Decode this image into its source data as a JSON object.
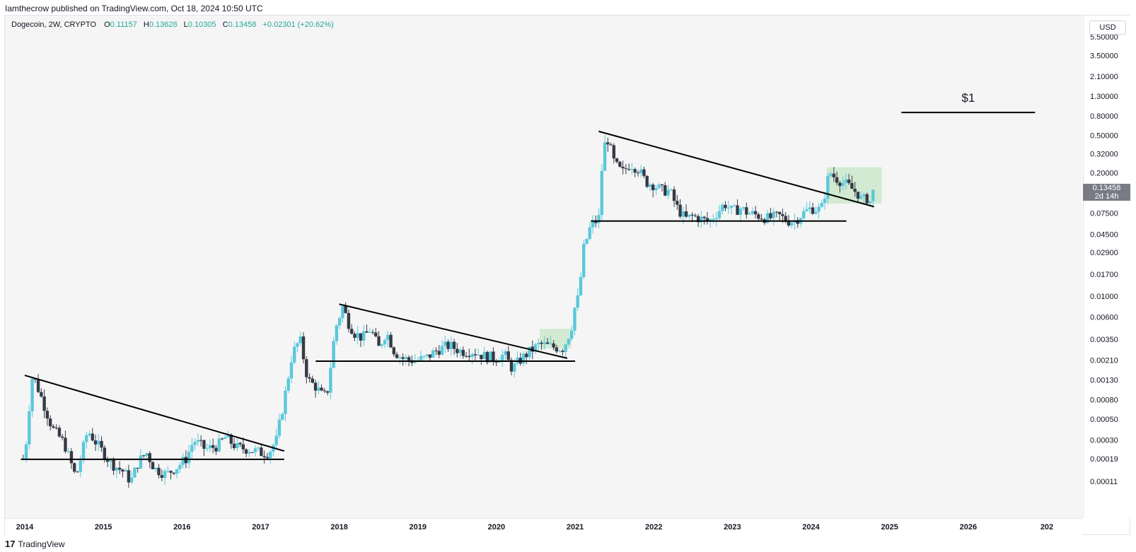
{
  "header": {
    "published": "Iamthecrow published on TradingView.com, Oct 18, 2024 10:50 UTC"
  },
  "legend": {
    "symbol": "Dogecoin, 2W, CRYPTO",
    "o_label": "O",
    "o_value": "0.11157",
    "h_label": "H",
    "h_value": "0.13628",
    "l_label": "L",
    "l_value": "0.10305",
    "c_label": "C",
    "c_value": "0.13458",
    "change": "+0.02301 (+20.62%)"
  },
  "currency_button": "USD",
  "price_badge": {
    "price": "0.13458",
    "countdown": "2d 14h"
  },
  "annotation_text": "$1",
  "footer": {
    "brand": "TradingView",
    "logo": "17"
  },
  "colors": {
    "up": "#5ac8dc",
    "down": "#363a45",
    "accent_green": "#26a69a",
    "box_fill": "#c5e6c5"
  },
  "chart_data": {
    "type": "candlestick",
    "scale": "log",
    "symbol": "Dogecoin",
    "interval": "2W",
    "y_ticks": [
      "5.50000",
      "3.50000",
      "2.10000",
      "1.30000",
      "0.80000",
      "0.50000",
      "0.32000",
      "0.20000",
      "0.13458",
      "0.07500",
      "0.04500",
      "0.02900",
      "0.01700",
      "0.01000",
      "0.00600",
      "0.00350",
      "0.00210",
      "0.00130",
      "0.00080",
      "0.00050",
      "0.00030",
      "0.00019",
      "0.00011"
    ],
    "x_ticks": [
      "2014",
      "2015",
      "2016",
      "2017",
      "2018",
      "2019",
      "2020",
      "2021",
      "2022",
      "2023",
      "2024",
      "2025",
      "2026",
      "202"
    ],
    "x_range": [
      2013.9,
      2027.1
    ],
    "y_range": [
      8e-05,
      6.5
    ],
    "anchors": [
      [
        2014.0,
        0.00019
      ],
      [
        2014.05,
        0.0006
      ],
      [
        2014.1,
        0.0015
      ],
      [
        2014.2,
        0.0009
      ],
      [
        2014.35,
        0.0004
      ],
      [
        2014.5,
        0.00028
      ],
      [
        2014.6,
        0.00016
      ],
      [
        2014.65,
        0.00012
      ],
      [
        2014.8,
        0.00038
      ],
      [
        2014.95,
        0.00025
      ],
      [
        2015.1,
        0.00017
      ],
      [
        2015.25,
        0.00014
      ],
      [
        2015.35,
        0.00011
      ],
      [
        2015.45,
        0.00018
      ],
      [
        2015.55,
        0.00022
      ],
      [
        2015.65,
        0.00015
      ],
      [
        2015.8,
        0.00013
      ],
      [
        2015.95,
        0.00016
      ],
      [
        2016.05,
        0.00019
      ],
      [
        2016.15,
        0.0003
      ],
      [
        2016.3,
        0.00024
      ],
      [
        2016.45,
        0.00026
      ],
      [
        2016.55,
        0.00032
      ],
      [
        2016.7,
        0.00025
      ],
      [
        2016.85,
        0.00024
      ],
      [
        2017.0,
        0.00022
      ],
      [
        2017.1,
        0.00022
      ],
      [
        2017.2,
        0.0003
      ],
      [
        2017.3,
        0.0008
      ],
      [
        2017.4,
        0.0024
      ],
      [
        2017.5,
        0.0035
      ],
      [
        2017.6,
        0.0013
      ],
      [
        2017.7,
        0.0011
      ],
      [
        2017.8,
        0.00085
      ],
      [
        2017.85,
        0.001
      ],
      [
        2017.95,
        0.0045
      ],
      [
        2018.05,
        0.008
      ],
      [
        2018.1,
        0.0055
      ],
      [
        2018.2,
        0.004
      ],
      [
        2018.3,
        0.0036
      ],
      [
        2018.4,
        0.0045
      ],
      [
        2018.5,
        0.0028
      ],
      [
        2018.6,
        0.0042
      ],
      [
        2018.7,
        0.0026
      ],
      [
        2018.8,
        0.0022
      ],
      [
        2018.9,
        0.0021
      ],
      [
        2019.0,
        0.0021
      ],
      [
        2019.1,
        0.0022
      ],
      [
        2019.25,
        0.0027
      ],
      [
        2019.4,
        0.003
      ],
      [
        2019.55,
        0.0026
      ],
      [
        2019.7,
        0.0026
      ],
      [
        2019.85,
        0.0023
      ],
      [
        2020.0,
        0.0022
      ],
      [
        2020.1,
        0.0024
      ],
      [
        2020.2,
        0.0017
      ],
      [
        2020.3,
        0.0021
      ],
      [
        2020.4,
        0.0025
      ],
      [
        2020.55,
        0.0031
      ],
      [
        2020.7,
        0.0029
      ],
      [
        2020.85,
        0.0028
      ],
      [
        2020.95,
        0.0045
      ],
      [
        2021.0,
        0.008
      ],
      [
        2021.05,
        0.01
      ],
      [
        2021.1,
        0.03
      ],
      [
        2021.2,
        0.056
      ],
      [
        2021.3,
        0.065
      ],
      [
        2021.35,
        0.3
      ],
      [
        2021.4,
        0.5
      ],
      [
        2021.5,
        0.25
      ],
      [
        2021.6,
        0.2
      ],
      [
        2021.7,
        0.25
      ],
      [
        2021.8,
        0.22
      ],
      [
        2021.9,
        0.16
      ],
      [
        2022.0,
        0.15
      ],
      [
        2022.1,
        0.13
      ],
      [
        2022.2,
        0.13
      ],
      [
        2022.3,
        0.085
      ],
      [
        2022.4,
        0.065
      ],
      [
        2022.5,
        0.07
      ],
      [
        2022.6,
        0.065
      ],
      [
        2022.7,
        0.061
      ],
      [
        2022.8,
        0.075
      ],
      [
        2022.9,
        0.095
      ],
      [
        2023.0,
        0.078
      ],
      [
        2023.1,
        0.085
      ],
      [
        2023.2,
        0.075
      ],
      [
        2023.3,
        0.072
      ],
      [
        2023.45,
        0.066
      ],
      [
        2023.6,
        0.07
      ],
      [
        2023.7,
        0.062
      ],
      [
        2023.8,
        0.063
      ],
      [
        2023.9,
        0.075
      ],
      [
        2024.0,
        0.085
      ],
      [
        2024.1,
        0.082
      ],
      [
        2024.15,
        0.088
      ],
      [
        2024.2,
        0.16
      ],
      [
        2024.25,
        0.2
      ],
      [
        2024.3,
        0.18
      ],
      [
        2024.4,
        0.16
      ],
      [
        2024.5,
        0.14
      ],
      [
        2024.6,
        0.12
      ],
      [
        2024.65,
        0.1
      ],
      [
        2024.7,
        0.11
      ],
      [
        2024.75,
        0.1
      ],
      [
        2024.8,
        0.13458
      ]
    ],
    "trendlines": [
      {
        "from": [
          2014.0,
          0.00145
        ],
        "to": [
          2017.3,
          0.00023
        ]
      },
      {
        "from": [
          2018.0,
          0.0082
        ],
        "to": [
          2020.9,
          0.0022
        ]
      },
      {
        "from": [
          2021.3,
          0.55
        ],
        "to": [
          2024.8,
          0.088
        ]
      }
    ],
    "support_lines": [
      {
        "from": [
          2013.95,
          0.000188
        ],
        "to": [
          2017.3,
          0.000188
        ]
      },
      {
        "from": [
          2017.7,
          0.00205
        ],
        "to": [
          2021.0,
          0.00205
        ]
      },
      {
        "from": [
          2021.2,
          0.062
        ],
        "to": [
          2024.45,
          0.062
        ]
      }
    ],
    "target_line": {
      "from": [
        2025.15,
        1.0
      ],
      "to": [
        2026.85,
        1.0
      ]
    },
    "boxes": [
      {
        "from": [
          2020.55,
          0.0028
        ],
        "to": [
          2020.95,
          0.0045
        ]
      },
      {
        "from": [
          2024.2,
          0.095
        ],
        "to": [
          2024.9,
          0.23
        ]
      }
    ]
  }
}
